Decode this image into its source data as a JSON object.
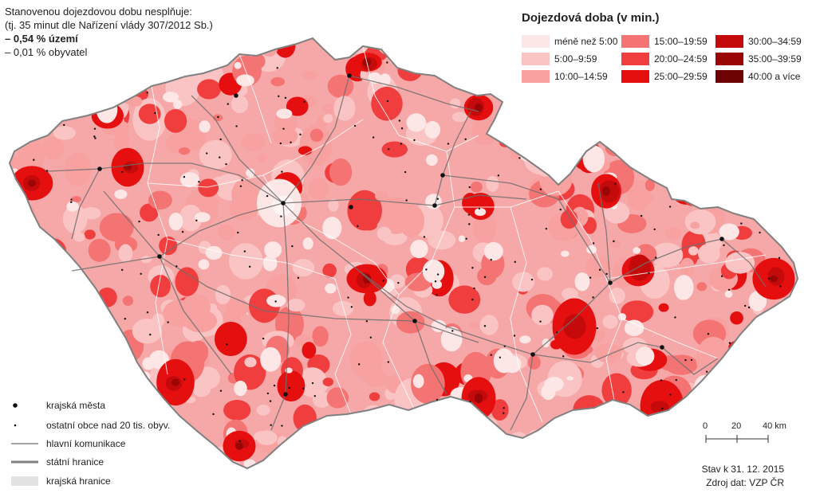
{
  "note": {
    "line1": "Stanovenou dojezdovou dobu nesplňuje:",
    "line2": "(tj. 35 minut dle Nařízení vlády 307/2012 Sb.)",
    "line3": "– 0,54 % území",
    "line4": "– 0,01 % obyvatel"
  },
  "legend": {
    "title": "Dojezdová doba (v min.)",
    "classes": [
      {
        "label": "méně než 5:00",
        "color": "#fde6e6"
      },
      {
        "label": "5:00–9:59",
        "color": "#fbc4c4"
      },
      {
        "label": "10:00–14:59",
        "color": "#f8a1a1"
      },
      {
        "label": "15:00–19:59",
        "color": "#f47474"
      },
      {
        "label": "20:00–24:59",
        "color": "#f03e3e"
      },
      {
        "label": "25:00–29:59",
        "color": "#e60f0f"
      },
      {
        "label": "30:00–34:59",
        "color": "#c40a0a"
      },
      {
        "label": "35:00–39:59",
        "color": "#9a0606"
      },
      {
        "label": "40:00 a více",
        "color": "#6e0303"
      }
    ]
  },
  "key": {
    "regional_cities": "krajská města",
    "other_towns": "ostatní obce nad 20 tis. obyv.",
    "main_roads": "hlavní komunikace",
    "state_border": "státní hranice",
    "regional_border": "krajská hranice"
  },
  "scale": {
    "ticks": [
      "0",
      "20",
      "40 km"
    ]
  },
  "footer": {
    "status": "Stav k 31. 12. 2015",
    "source": "Zdroj dat: VZP ČR"
  },
  "colors": {
    "base": "#f6a7a7",
    "border": "#808080",
    "road": "#6f6f6f",
    "regional_border": "#ffffff"
  }
}
